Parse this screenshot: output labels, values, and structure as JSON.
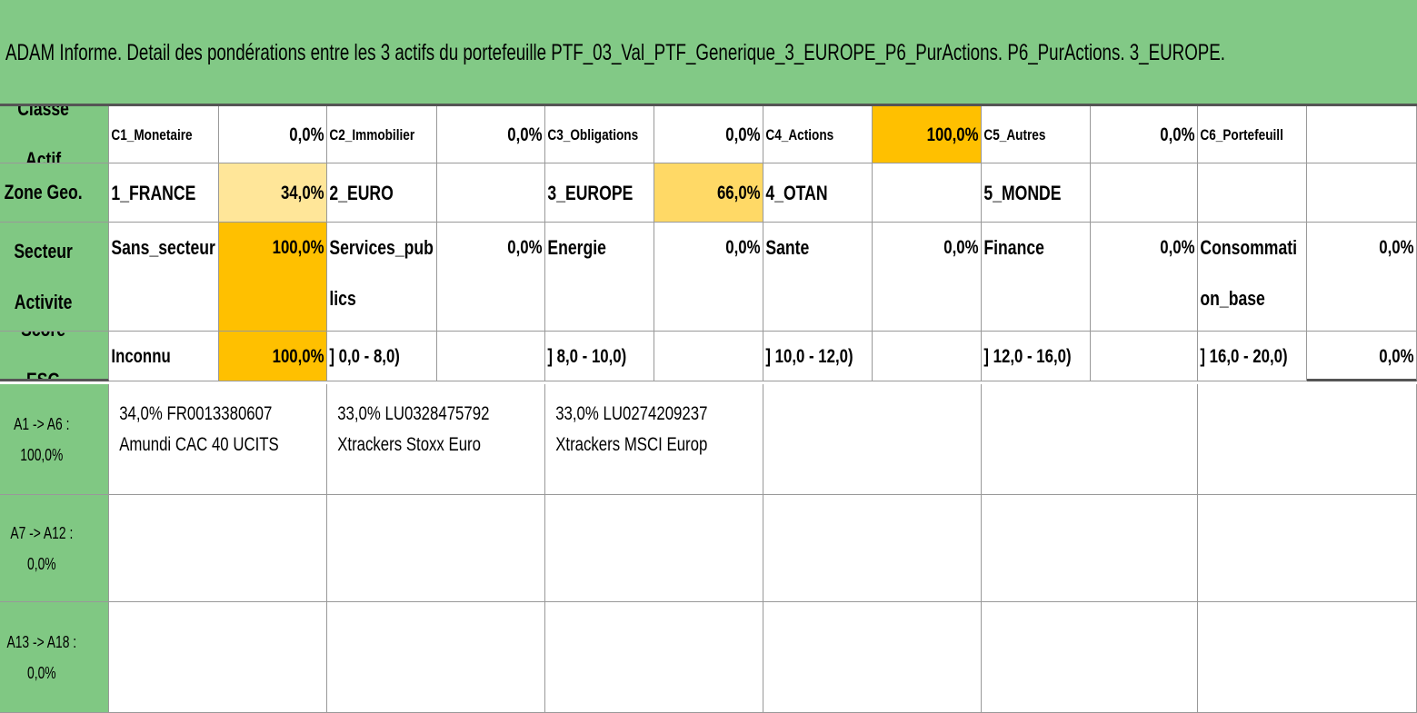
{
  "title": "ADAM Informe. Detail des pondérations entre les 3 actifs du portefeuille PTF_03_Val_PTF_Generique_3_EUROPE_P6_PurActions. P6_PurActions. 3_EUROPE.",
  "rows": [
    {
      "label": "Classe Actif",
      "cells": [
        "C1_Monetaire",
        "0,0%",
        "C2_Immobilier",
        "0,0%",
        "C3_Obligations",
        "0,0%",
        "C4_Actions",
        "100,0%",
        "C5_Autres",
        "0,0%",
        "C6_Portefeuill",
        null
      ]
    },
    {
      "label": "Zone Geo.",
      "cells": [
        "1_FRANCE",
        "34,0%",
        "2_EURO",
        null,
        "3_EUROPE",
        "66,0%",
        "4_OTAN",
        null,
        "5_MONDE",
        null,
        null,
        null
      ]
    },
    {
      "label": "Secteur Activite",
      "cells": [
        "Sans_secteur",
        "100,0%",
        "Services_publics",
        "0,0%",
        "Energie",
        "0,0%",
        "Sante",
        "0,0%",
        "Finance",
        "0,0%",
        "Consommation_base",
        "0,0%"
      ]
    },
    {
      "label": "Score ESG",
      "cells": [
        "Inconnu",
        "100,0%",
        "] 0,0 - 8,0)",
        null,
        "] 8,0 - 10,0)",
        null,
        "] 10,0 - 12,0)",
        null,
        "] 12,0 - 16,0)",
        null,
        "] 16,0 - 20,0)",
        "0,0%"
      ]
    }
  ],
  "groups": [
    {
      "label": "A1 -> A6 : 100,0%",
      "assets": [
        {
          "line1": "34,0% FR0013380607",
          "line2": "Amundi CAC 40 UCITS"
        },
        {
          "line1": "33,0% LU0328475792",
          "line2": "Xtrackers Stoxx Euro"
        },
        {
          "line1": "33,0% LU0274209237",
          "line2": "Xtrackers MSCI Europ"
        }
      ]
    },
    {
      "label": "A7 -> A12 : 0,0%",
      "assets": []
    },
    {
      "label": "A13 -> A18 : 0,0%",
      "assets": []
    }
  ]
}
